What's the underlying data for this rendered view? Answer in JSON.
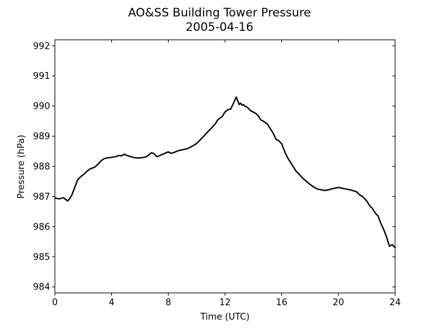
{
  "chart_data": {
    "type": "line",
    "title": "AO&SS Building Tower Pressure",
    "subtitle": "2005-04-16",
    "xlabel": "Time (UTC)",
    "ylabel": "Pressure (hPa)",
    "xlim": [
      0,
      24
    ],
    "ylim": [
      983.8,
      992.2
    ],
    "xticks": [
      0,
      4,
      8,
      12,
      16,
      20,
      24
    ],
    "yticks": [
      984,
      985,
      986,
      987,
      988,
      989,
      990,
      991,
      992
    ],
    "grid": false,
    "legend": "none",
    "line_color": "#000000",
    "series": [
      {
        "x": [
          0,
          0.3,
          0.6,
          0.9,
          1.0,
          1.2,
          1.4,
          1.6,
          1.8,
          2.0,
          2.3,
          2.5,
          2.8,
          3.0,
          3.3,
          3.5,
          3.7,
          4.0,
          4.3,
          4.5,
          4.7,
          4.9,
          5.1,
          5.3,
          5.5,
          5.7,
          6.0,
          6.3,
          6.5,
          6.8,
          7.0,
          7.2,
          7.4,
          7.6,
          7.8,
          8.0,
          8.2,
          8.5,
          8.7,
          9.0,
          9.3,
          9.5,
          9.8,
          10.0,
          10.3,
          10.5,
          10.8,
          11.0,
          11.3,
          11.5,
          11.8,
          12.0,
          12.2,
          12.4,
          12.6,
          12.8,
          13.0,
          13.1,
          13.2,
          13.3,
          13.4,
          13.6,
          13.8,
          14.0,
          14.2,
          14.4,
          14.5,
          14.7,
          15.0,
          15.2,
          15.4,
          15.6,
          15.8,
          16.0,
          16.2,
          16.4,
          16.6,
          16.8,
          17.0,
          17.2,
          17.5,
          17.8,
          18.0,
          18.3,
          18.5,
          18.8,
          19.0,
          19.3,
          19.5,
          19.8,
          20.0,
          20.2,
          20.5,
          20.8,
          21.0,
          21.3,
          21.5,
          21.7,
          22.0,
          22.2,
          22.4,
          22.6,
          22.8,
          23.0,
          23.2,
          23.4,
          23.6,
          23.8,
          24.0
        ],
        "values": [
          986.95,
          986.92,
          986.96,
          986.85,
          986.9,
          987.05,
          987.3,
          987.55,
          987.65,
          987.72,
          987.85,
          987.92,
          987.97,
          988.05,
          988.2,
          988.26,
          988.28,
          988.3,
          988.32,
          988.36,
          988.35,
          988.4,
          988.36,
          988.33,
          988.3,
          988.28,
          988.28,
          988.3,
          988.33,
          988.45,
          988.42,
          988.32,
          988.36,
          988.4,
          988.44,
          988.48,
          988.43,
          988.48,
          988.52,
          988.55,
          988.58,
          988.62,
          988.7,
          988.76,
          988.9,
          989.0,
          989.15,
          989.25,
          989.4,
          989.55,
          989.65,
          989.8,
          989.88,
          989.9,
          990.1,
          990.3,
          990.05,
          990.1,
          990.03,
          990.05,
          990.0,
          989.95,
          989.85,
          989.8,
          989.75,
          989.65,
          989.55,
          989.5,
          989.4,
          989.25,
          989.1,
          988.9,
          988.85,
          988.75,
          988.5,
          988.3,
          988.15,
          988.0,
          987.85,
          987.75,
          987.6,
          987.48,
          987.4,
          987.3,
          987.25,
          987.22,
          987.2,
          987.22,
          987.25,
          987.28,
          987.3,
          987.28,
          987.25,
          987.22,
          987.2,
          987.15,
          987.05,
          987.0,
          986.85,
          986.7,
          986.6,
          986.45,
          986.35,
          986.1,
          985.9,
          985.65,
          985.35,
          985.4,
          985.3
        ]
      }
    ]
  }
}
